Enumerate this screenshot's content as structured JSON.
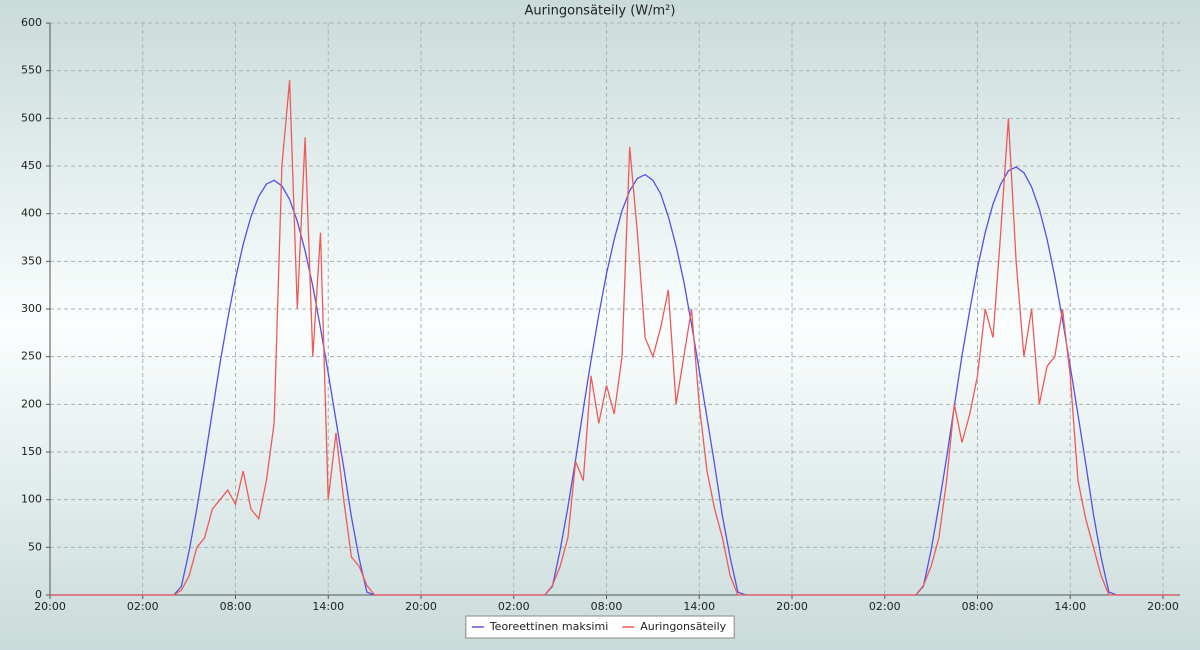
{
  "chart_data": {
    "type": "line",
    "title": "Auringonsäteily (W/m²)",
    "x": [
      0,
      8,
      8.5,
      9,
      9.5,
      10,
      10.5,
      11,
      11.5,
      12,
      12.5,
      13,
      13.5,
      14,
      14.5,
      15,
      15.5,
      16,
      16.5,
      17,
      17.5,
      18,
      18.5,
      19,
      19.5,
      20,
      20.5,
      21,
      32,
      32.5,
      33,
      33.5,
      34,
      34.5,
      35,
      35.5,
      36,
      36.5,
      37,
      37.5,
      38,
      38.5,
      39,
      39.5,
      40,
      40.5,
      41,
      41.5,
      42,
      42.5,
      43,
      43.5,
      44,
      44.5,
      45,
      56,
      56.5,
      57,
      57.5,
      58,
      58.5,
      59,
      59.5,
      60,
      60.5,
      61,
      61.5,
      62,
      62.5,
      63,
      63.5,
      64,
      64.5,
      65,
      65.5,
      66,
      66.5,
      67,
      67.5,
      68,
      68.5,
      69,
      73
    ],
    "series": [
      {
        "name": "Teoreettinen maksimi",
        "color": "#5252e6",
        "values": [
          0,
          0,
          9,
          46,
          91,
          140,
          192,
          243,
          290,
          332,
          368,
          397,
          418,
          431,
          435,
          429,
          415,
          392,
          361,
          324,
          280,
          233,
          183,
          134,
          82,
          38,
          3,
          0,
          0,
          9,
          47,
          92,
          142,
          195,
          246,
          294,
          337,
          373,
          403,
          424,
          437,
          441,
          435,
          421,
          397,
          366,
          329,
          284,
          236,
          186,
          136,
          83,
          39,
          3,
          0,
          0,
          9,
          47,
          94,
          144,
          198,
          251,
          299,
          343,
          380,
          410,
          431,
          445,
          449,
          443,
          428,
          405,
          373,
          334,
          289,
          240,
          189,
          138,
          85,
          39,
          3,
          0,
          0
        ]
      },
      {
        "name": "Auringonsäteily",
        "color": "#ee5a5a",
        "values": [
          0,
          0,
          5,
          20,
          50,
          60,
          90,
          100,
          110,
          95,
          130,
          90,
          80,
          120,
          180,
          450,
          540,
          300,
          480,
          250,
          380,
          100,
          170,
          100,
          40,
          30,
          10,
          0,
          0,
          10,
          30,
          60,
          140,
          120,
          230,
          180,
          220,
          190,
          250,
          470,
          380,
          270,
          250,
          280,
          320,
          200,
          250,
          300,
          200,
          130,
          90,
          60,
          20,
          0,
          0,
          0,
          10,
          30,
          60,
          120,
          200,
          160,
          190,
          230,
          300,
          270,
          380,
          500,
          350,
          250,
          300,
          200,
          240,
          250,
          300,
          230,
          120,
          80,
          50,
          20,
          0,
          0,
          0
        ]
      }
    ],
    "xlim": [
      0,
      73.1
    ],
    "xticks": [
      {
        "value": 0,
        "label": "20:00"
      },
      {
        "value": 6,
        "label": "02:00"
      },
      {
        "value": 12,
        "label": "08:00"
      },
      {
        "value": 18,
        "label": "14:00"
      },
      {
        "value": 24,
        "label": "20:00"
      },
      {
        "value": 30,
        "label": "02:00"
      },
      {
        "value": 36,
        "label": "08:00"
      },
      {
        "value": 42,
        "label": "14:00"
      },
      {
        "value": 48,
        "label": "20:00"
      },
      {
        "value": 54,
        "label": "02:00"
      },
      {
        "value": 60,
        "label": "08:00"
      },
      {
        "value": 66,
        "label": "14:00"
      },
      {
        "value": 72,
        "label": "20:00"
      }
    ],
    "ylim": [
      0,
      600
    ],
    "yticks": [
      0,
      50,
      100,
      150,
      200,
      250,
      300,
      350,
      400,
      450,
      500,
      550,
      600
    ],
    "grid": true,
    "legend": "bottom"
  }
}
